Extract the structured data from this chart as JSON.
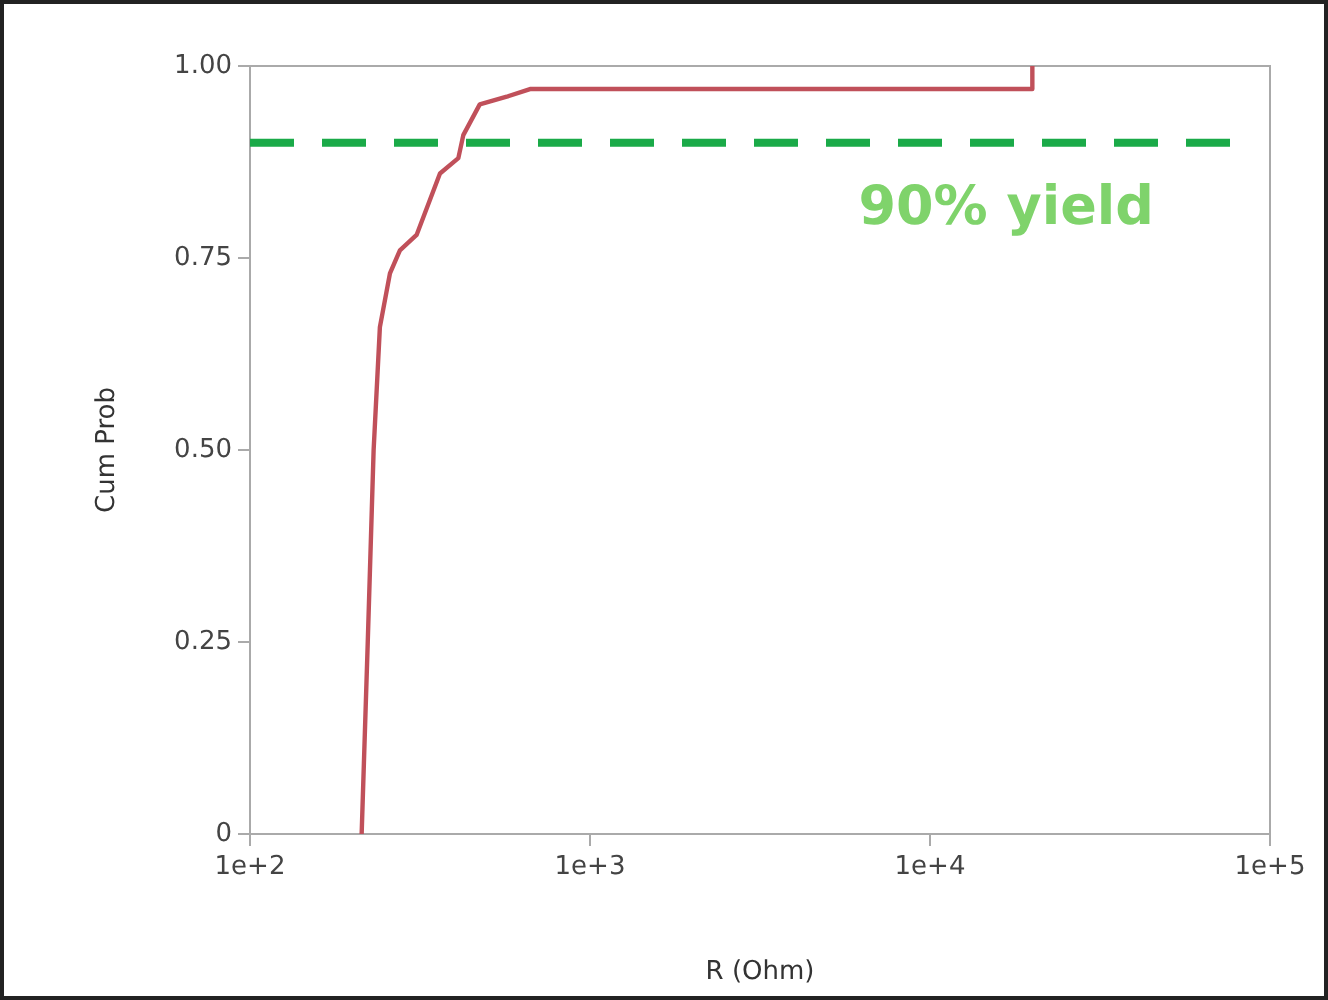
{
  "chart_data": {
    "type": "line",
    "xlabel": "R (Ohm)",
    "ylabel": "Cum Prob",
    "log": "x",
    "grid": false,
    "legend": false,
    "marker": "none",
    "line_style": "solid",
    "xlim": [
      100,
      100000
    ],
    "xticks": [
      {
        "value": 100,
        "label": "1e+2"
      },
      {
        "value": 1000,
        "label": "1e+3"
      },
      {
        "value": 10000,
        "label": "1e+4"
      },
      {
        "value": 100000,
        "label": "1e+5"
      }
    ],
    "ylim": [
      0,
      1
    ],
    "yticks": [
      0,
      0.25,
      {
        "value": 0.5,
        "label": "0.50"
      },
      0.75,
      {
        "value": 1,
        "label": "1.00"
      }
    ],
    "series": [
      {
        "color": "#c0505a",
        "x": [
          213,
          222,
          231,
          241,
          258,
          276,
          309,
          362,
          410,
          424,
          474,
          569,
          666,
          20000,
          20000
        ],
        "values": [
          0,
          0.25,
          0.5,
          0.66,
          0.73,
          0.76,
          0.78,
          0.86,
          0.88,
          0.91,
          0.95,
          0.96,
          0.97,
          0.97,
          1
        ]
      }
    ],
    "ref_lines": [
      {
        "axis": "y",
        "value": 0.9,
        "label": "90% yield",
        "color": "#1aaa48",
        "line_style": "dashed"
      }
    ]
  }
}
